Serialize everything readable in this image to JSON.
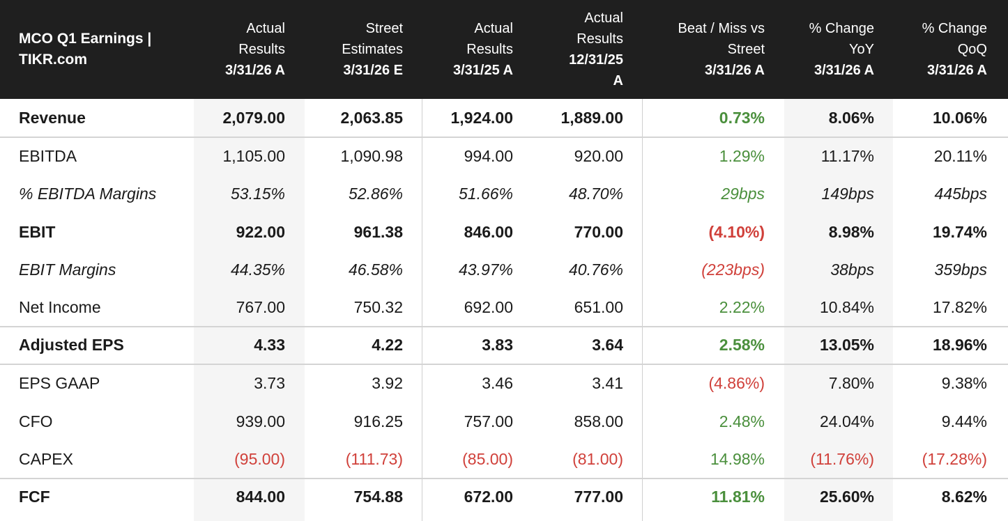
{
  "header": {
    "title_line1": "MCO Q1 Earnings |",
    "title_line2": "TIKR.com",
    "columns": [
      {
        "lines": [
          "Actual",
          "Results"
        ],
        "date_lines": [
          "3/31/26 A"
        ]
      },
      {
        "lines": [
          "Street",
          "Estimates"
        ],
        "date_lines": [
          "3/31/26 E"
        ]
      },
      {
        "lines": [
          "Actual",
          "Results"
        ],
        "date_lines": [
          "3/31/25 A"
        ]
      },
      {
        "lines": [
          "Actual",
          "Results"
        ],
        "date_lines": [
          "12/31/25",
          "A"
        ]
      },
      {
        "lines": [
          "Beat / Miss vs",
          "Street"
        ],
        "date_lines": [
          "3/31/26 A"
        ]
      },
      {
        "lines": [
          "% Change",
          "YoY"
        ],
        "date_lines": [
          "3/31/26 A"
        ]
      },
      {
        "lines": [
          "% Change",
          "QoQ"
        ],
        "date_lines": [
          "3/31/26 A"
        ]
      }
    ]
  },
  "colors": {
    "header_bg": "#1f1f1f",
    "negative": "#d0403a",
    "positive": "#4a8f3c",
    "shaded_column": "#f5f5f5"
  },
  "rows": [
    {
      "label": "Revenue",
      "style": "bold",
      "values": [
        "2,079.00",
        "2,063.85",
        "1,924.00",
        "1,889.00",
        "0.73%",
        "8.06%",
        "10.06%"
      ]
    },
    {
      "label": "EBITDA",
      "style": "normal",
      "values": [
        "1,105.00",
        "1,090.98",
        "994.00",
        "920.00",
        "1.29%",
        "11.17%",
        "20.11%"
      ]
    },
    {
      "label": "% EBITDA Margins",
      "style": "italic",
      "values": [
        "53.15%",
        "52.86%",
        "51.66%",
        "48.70%",
        "29bps",
        "149bps",
        "445bps"
      ]
    },
    {
      "label": "EBIT",
      "style": "bold",
      "values": [
        "922.00",
        "961.38",
        "846.00",
        "770.00",
        "(4.10%)",
        "8.98%",
        "19.74%"
      ]
    },
    {
      "label": "EBIT Margins",
      "style": "italic",
      "values": [
        "44.35%",
        "46.58%",
        "43.97%",
        "40.76%",
        "(223bps)",
        "38bps",
        "359bps"
      ]
    },
    {
      "label": "Net Income",
      "style": "normal",
      "values": [
        "767.00",
        "750.32",
        "692.00",
        "651.00",
        "2.22%",
        "10.84%",
        "17.82%"
      ]
    },
    {
      "label": "Adjusted EPS",
      "style": "bold",
      "values": [
        "4.33",
        "4.22",
        "3.83",
        "3.64",
        "2.58%",
        "13.05%",
        "18.96%"
      ]
    },
    {
      "label": "EPS GAAP",
      "style": "normal",
      "values": [
        "3.73",
        "3.92",
        "3.46",
        "3.41",
        "(4.86%)",
        "7.80%",
        "9.38%"
      ]
    },
    {
      "label": "CFO",
      "style": "normal",
      "values": [
        "939.00",
        "916.25",
        "757.00",
        "858.00",
        "2.48%",
        "24.04%",
        "9.44%"
      ]
    },
    {
      "label": "CAPEX",
      "style": "normal",
      "values": [
        "(95.00)",
        "(111.73)",
        "(85.00)",
        "(81.00)",
        "14.98%",
        "(11.76%)",
        "(17.28%)"
      ]
    },
    {
      "label": "FCF",
      "style": "bold",
      "values": [
        "844.00",
        "754.88",
        "672.00",
        "777.00",
        "11.81%",
        "25.60%",
        "8.62%"
      ]
    }
  ]
}
